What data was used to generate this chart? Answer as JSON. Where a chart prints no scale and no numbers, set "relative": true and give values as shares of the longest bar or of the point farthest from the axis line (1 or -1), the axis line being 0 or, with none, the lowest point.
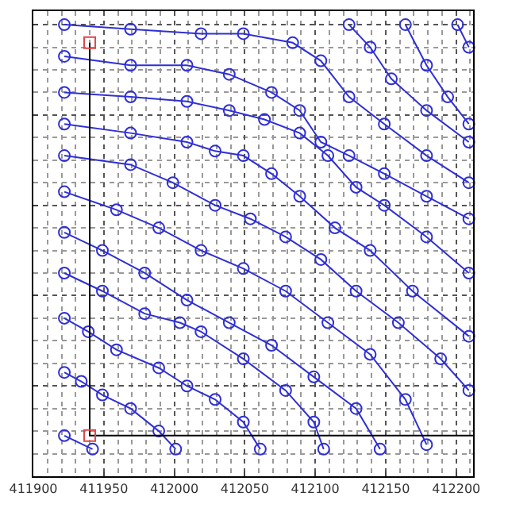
{
  "chart_data": {
    "type": "line",
    "relative": true,
    "marker": "circle",
    "grid": true,
    "xlim": [
      411900,
      412212
    ],
    "xticks": [
      411900,
      411950,
      412000,
      412050,
      412100,
      412150,
      412200
    ],
    "series": [
      {
        "color": "#2f2fd6",
        "x": [
          411922,
          411969,
          412019,
          412049,
          412084,
          412104,
          412124,
          412149,
          412179,
          412209
        ],
        "values": [
          1.0,
          0.99,
          0.98,
          0.98,
          0.96,
          0.92,
          0.84,
          0.78,
          0.71,
          0.65
        ]
      },
      {
        "color": "#2f2fd6",
        "x": [
          411922,
          411969,
          412009,
          412039,
          412069,
          412089,
          412104,
          412124,
          412149,
          412179,
          412209
        ],
        "values": [
          0.93,
          0.91,
          0.91,
          0.89,
          0.85,
          0.81,
          0.74,
          0.71,
          0.67,
          0.62,
          0.57
        ]
      },
      {
        "color": "#2f2fd6",
        "x": [
          411922,
          411969,
          412009,
          412039,
          412064,
          412089,
          412109,
          412129,
          412149,
          412179,
          412209
        ],
        "values": [
          0.85,
          0.84,
          0.83,
          0.81,
          0.79,
          0.76,
          0.71,
          0.64,
          0.6,
          0.53,
          0.45
        ]
      },
      {
        "color": "#2f2fd6",
        "x": [
          411922,
          411969,
          412009,
          412029,
          412049,
          412069,
          412089,
          412114,
          412139,
          412169,
          412209
        ],
        "values": [
          0.78,
          0.76,
          0.74,
          0.72,
          0.71,
          0.67,
          0.62,
          0.55,
          0.5,
          0.41,
          0.31
        ]
      },
      {
        "color": "#2f2fd6",
        "x": [
          411922,
          411969,
          411999,
          412029,
          412054,
          412079,
          412104,
          412129,
          412159,
          412189,
          412209
        ],
        "values": [
          0.71,
          0.69,
          0.65,
          0.6,
          0.57,
          0.53,
          0.48,
          0.41,
          0.34,
          0.26,
          0.19
        ]
      },
      {
        "color": "#2f2fd6",
        "x": [
          411922,
          411959,
          411989,
          412019,
          412049,
          412079,
          412109,
          412139,
          412164,
          412179
        ],
        "values": [
          0.63,
          0.59,
          0.55,
          0.5,
          0.46,
          0.41,
          0.34,
          0.27,
          0.17,
          0.07
        ]
      },
      {
        "color": "#2f2fd6",
        "x": [
          411922,
          411949,
          411979,
          412009,
          412039,
          412069,
          412099,
          412129,
          412146
        ],
        "values": [
          0.54,
          0.5,
          0.45,
          0.39,
          0.34,
          0.29,
          0.22,
          0.15,
          0.06
        ]
      },
      {
        "color": "#2f2fd6",
        "x": [
          411922,
          411949,
          411979,
          412004,
          412019,
          412049,
          412079,
          412099,
          412106
        ],
        "values": [
          0.45,
          0.41,
          0.36,
          0.34,
          0.32,
          0.26,
          0.19,
          0.12,
          0.06
        ]
      },
      {
        "color": "#2f2fd6",
        "x": [
          411922,
          411939,
          411959,
          411989,
          412009,
          412029,
          412049,
          412061
        ],
        "values": [
          0.35,
          0.32,
          0.28,
          0.24,
          0.2,
          0.17,
          0.12,
          0.06
        ]
      },
      {
        "color": "#2f2fd6",
        "x": [
          411922,
          411934,
          411949,
          411969,
          411989,
          412001
        ],
        "values": [
          0.23,
          0.21,
          0.18,
          0.15,
          0.1,
          0.06
        ]
      },
      {
        "color": "#2f2fd6",
        "x": [
          411922,
          411942
        ],
        "values": [
          0.09,
          0.06
        ]
      },
      {
        "color": "#2f2fd6",
        "x": [
          412124,
          412139,
          412154,
          412179,
          412209
        ],
        "values": [
          1.0,
          0.95,
          0.88,
          0.81,
          0.74
        ]
      },
      {
        "color": "#2f2fd6",
        "x": [
          412164,
          412179,
          412194,
          412209
        ],
        "values": [
          1.0,
          0.91,
          0.84,
          0.78
        ]
      },
      {
        "color": "#2f2fd6",
        "x": [
          412201,
          412209
        ],
        "values": [
          1.0,
          0.95
        ]
      },
      {
        "color": "#000000",
        "marker": "none",
        "x": [
          411940,
          411940,
          412212
        ],
        "values": [
          0.96,
          0.09,
          0.09
        ]
      },
      {
        "color": "#e04848",
        "type": "scatter",
        "marker": "square",
        "x": [
          411940,
          411940
        ],
        "values": [
          0.96,
          0.09
        ]
      }
    ]
  }
}
